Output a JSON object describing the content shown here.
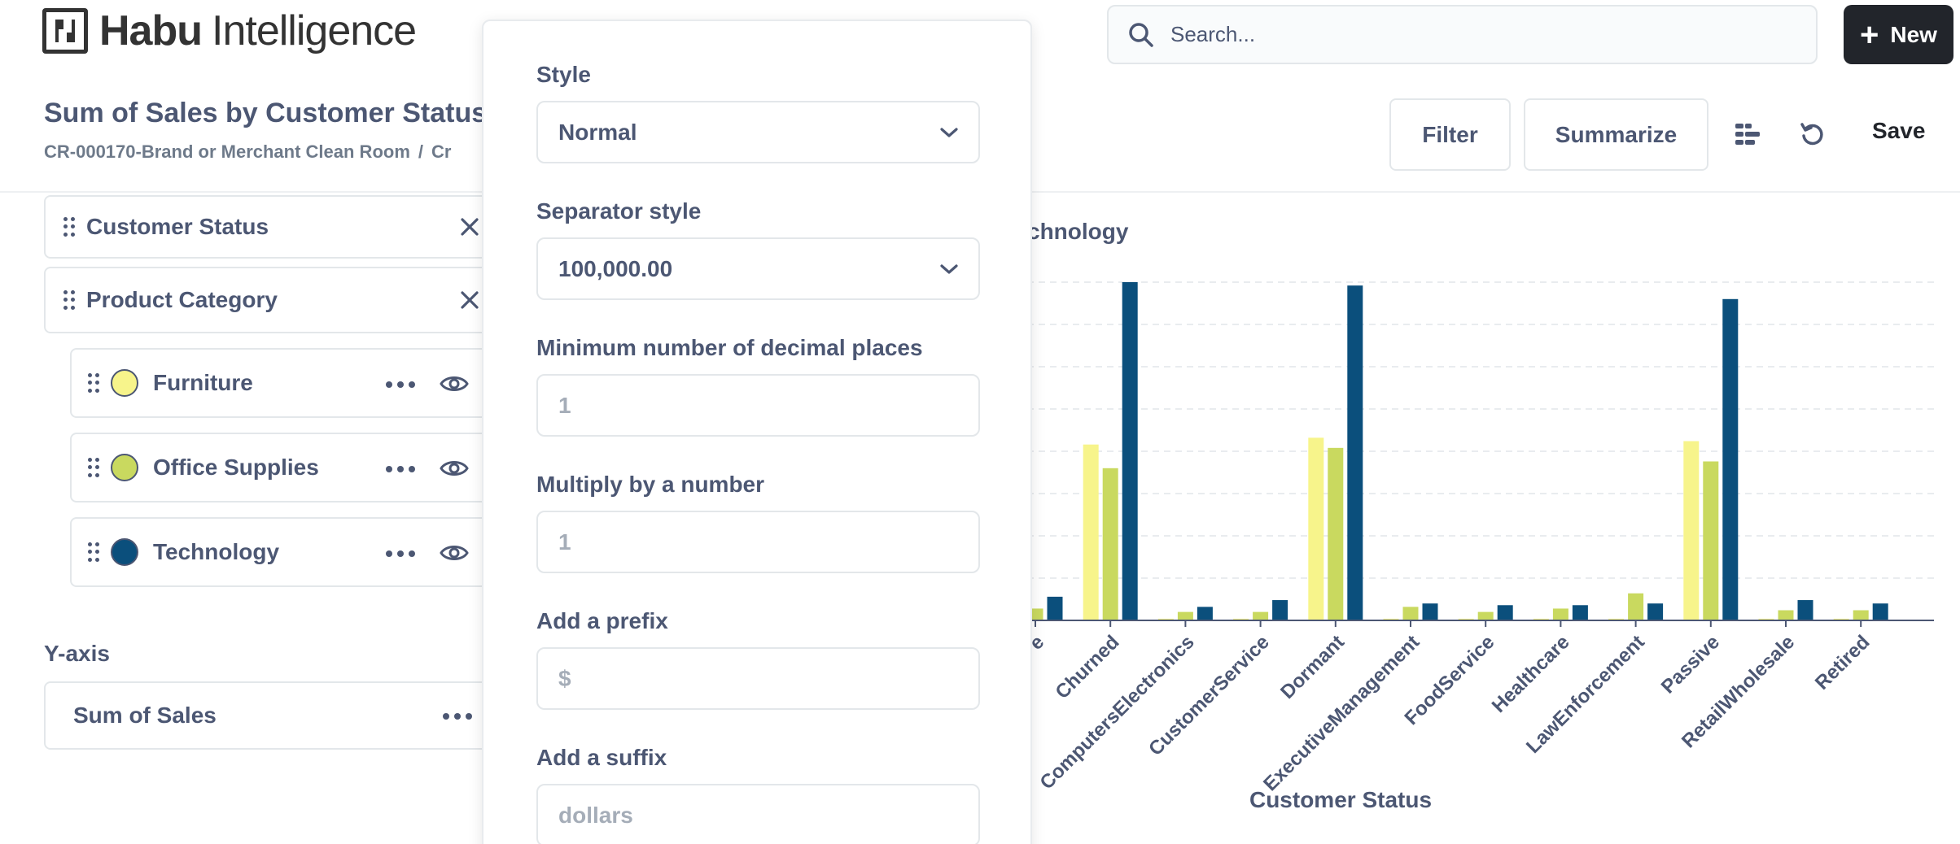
{
  "app": {
    "logo_bold": "Habu",
    "logo_light": "Intelligence"
  },
  "search": {
    "placeholder": "Search..."
  },
  "new_button": {
    "label": "New"
  },
  "question": {
    "title": "Sum of Sales by Customer Status",
    "breadcrumb": [
      "CR-000170-Brand or Merchant Clean Room",
      "Cr"
    ]
  },
  "toolbar": {
    "filter_label": "Filter",
    "summarize_label": "Summarize",
    "save_label": "Save"
  },
  "sidebar": {
    "dimensions": [
      "Customer Status",
      "Product Category"
    ],
    "series": [
      {
        "label": "Furniture",
        "color": "#f7f48b"
      },
      {
        "label": "Office Supplies",
        "color": "#c9d95f"
      },
      {
        "label": "Technology",
        "color": "#0b4f7c"
      }
    ],
    "y_axis_heading": "Y-axis",
    "y_axis_metric": "Sum of Sales"
  },
  "popover": {
    "style_label": "Style",
    "style_value": "Normal",
    "separator_label": "Separator style",
    "separator_value": "100,000.00",
    "min_decimals_label": "Minimum number of decimal places",
    "min_decimals_placeholder": "1",
    "multiply_label": "Multiply by a number",
    "multiply_placeholder": "1",
    "prefix_label": "Add a prefix",
    "prefix_placeholder": "$",
    "suffix_label": "Add a suffix",
    "suffix_placeholder": "dollars"
  },
  "chart_data": {
    "type": "bar",
    "legend_visible_text": "chnology",
    "xlabel": "Customer Status",
    "categories": [
      "e",
      "Churned",
      "ComputersElectronics",
      "CustomerService",
      "Dormant",
      "ExecutiveManagement",
      "FoodService",
      "Healthcare",
      "LawEnforcement",
      "Passive",
      "RetailWholesale",
      "Retired"
    ],
    "series": [
      {
        "name": "Furniture",
        "color": "#f7f48b",
        "values": [
          0,
          52,
          0.5,
          0.5,
          54,
          0.5,
          0.5,
          0.5,
          0.5,
          53,
          0.5,
          0.5
        ]
      },
      {
        "name": "Office Supplies",
        "color": "#c9d95f",
        "values": [
          3.5,
          45,
          2.5,
          2.5,
          51,
          4,
          2.5,
          3.5,
          8,
          47,
          3,
          3
        ]
      },
      {
        "name": "Technology",
        "color": "#0b4f7c",
        "values": [
          7,
          100,
          4,
          6,
          99,
          5,
          4.5,
          4.5,
          5,
          95,
          6,
          5
        ]
      }
    ],
    "ylim": [
      0,
      100
    ],
    "grid": true
  }
}
